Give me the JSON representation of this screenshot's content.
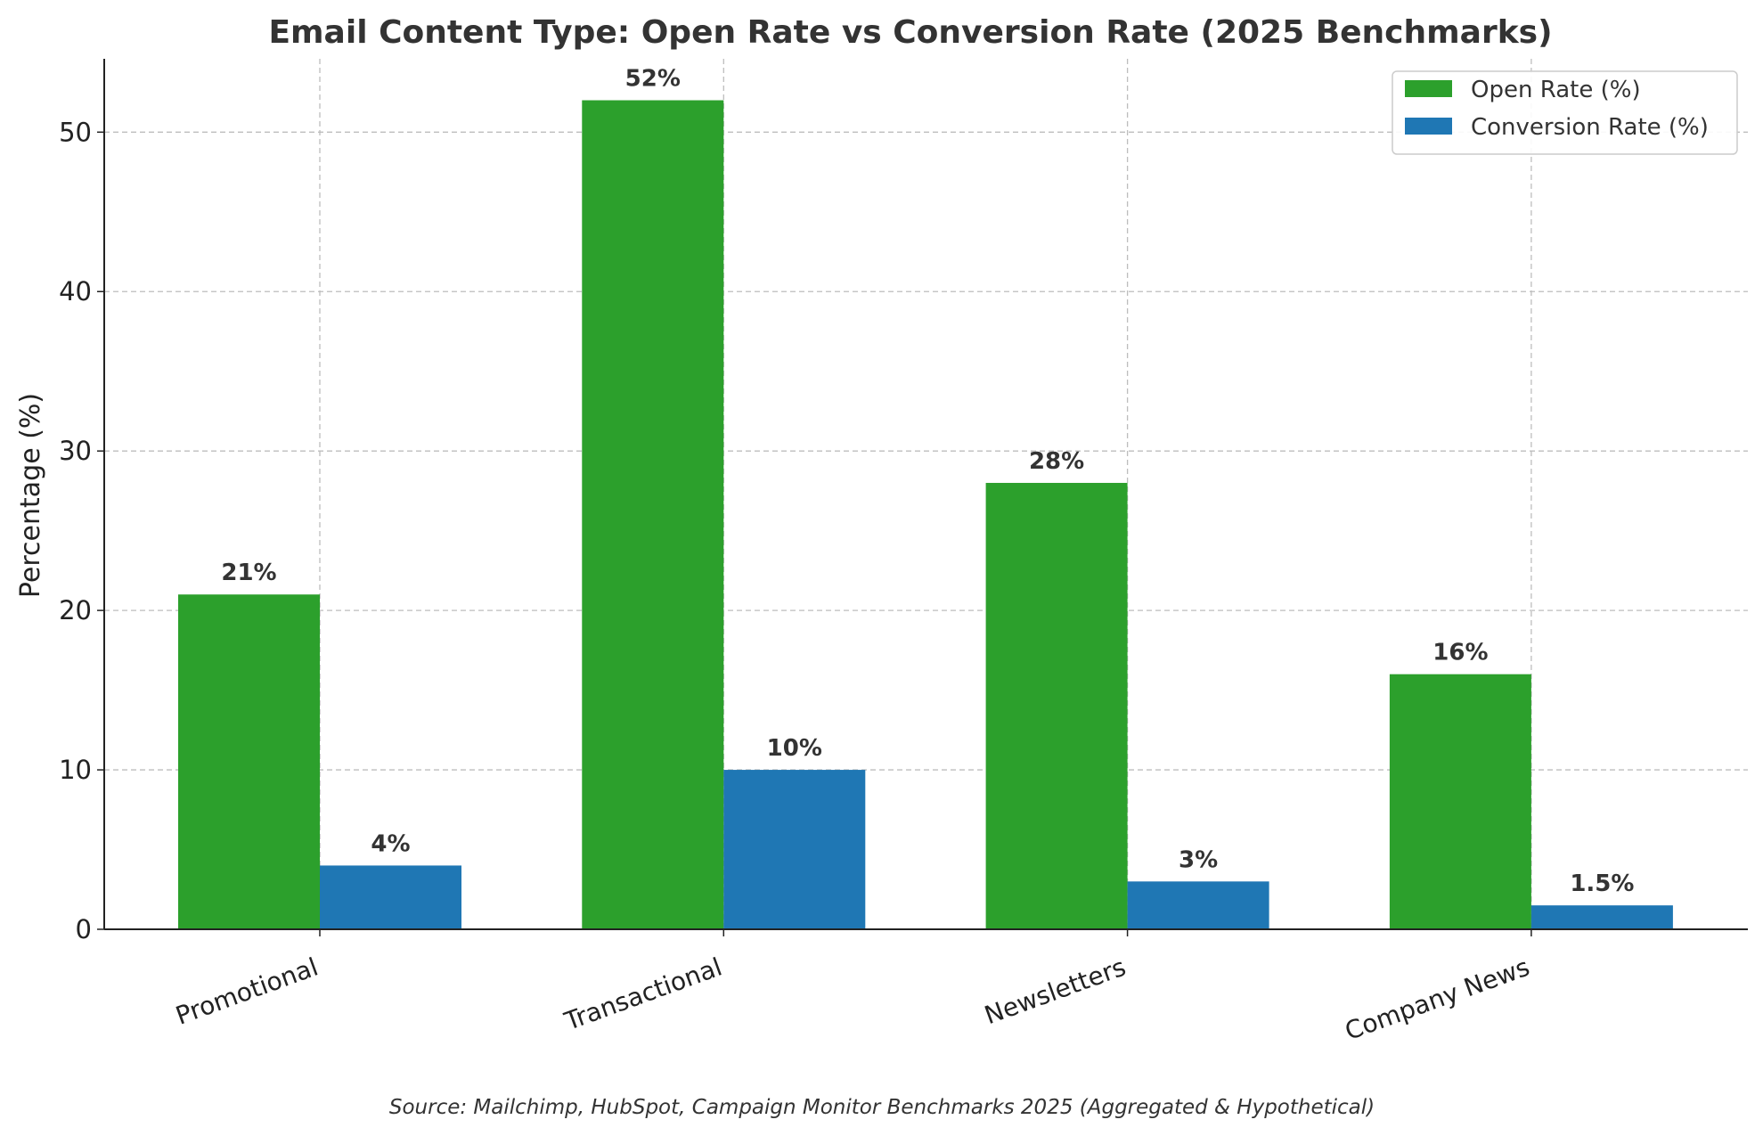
{
  "chart_data": {
    "type": "bar",
    "title": "Email Content Type: Open Rate vs Conversion Rate (2025 Benchmarks)",
    "xlabel": "",
    "ylabel": "Percentage (%)",
    "ylim": [
      0,
      54.6
    ],
    "yticks": [
      0,
      10,
      20,
      30,
      40,
      50
    ],
    "grid": true,
    "legend_position": "top-right",
    "categories": [
      "Promotional",
      "Transactional",
      "Newsletters",
      "Company News"
    ],
    "series": [
      {
        "name": "Open Rate (%)",
        "color": "#2ca02c",
        "values": [
          21,
          52,
          28,
          16
        ],
        "labels": [
          "21%",
          "52%",
          "28%",
          "16%"
        ]
      },
      {
        "name": "Conversion Rate (%)",
        "color": "#1f77b4",
        "values": [
          4,
          10,
          3,
          1.5
        ],
        "labels": [
          "4%",
          "10%",
          "3%",
          "1.5%"
        ]
      }
    ],
    "source_note": "Source: Mailchimp, HubSpot, Campaign Monitor Benchmarks 2025 (Aggregated & Hypothetical)"
  }
}
